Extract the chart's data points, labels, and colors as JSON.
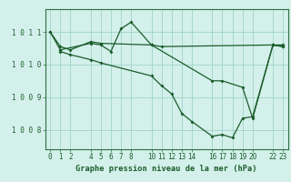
{
  "title": "Graphe pression niveau de la mer (hPa)",
  "background_color": "#d4f0eb",
  "grid_color": "#a0d4c8",
  "line_color": "#1a5c2a",
  "border_color": "#2d6e40",
  "xlim": [
    -0.5,
    23.5
  ],
  "ylim": [
    1007.4,
    1011.7
  ],
  "yticks": [
    1008,
    1009,
    1010,
    1011
  ],
  "ytick_labels": [
    "1 0 0 8",
    "1 0 0 9",
    "1 0 1 0",
    "1 0 1 1"
  ],
  "xtick_positions": [
    0,
    1,
    2,
    4,
    5,
    6,
    7,
    8,
    10,
    11,
    12,
    13,
    14,
    16,
    17,
    18,
    19,
    20,
    22,
    23
  ],
  "xtick_labels": [
    "0",
    "1",
    "2",
    "4",
    "5",
    "6",
    "7",
    "8",
    "10",
    "11",
    "12",
    "13",
    "14",
    "16",
    "17",
    "18",
    "19",
    "20",
    "22",
    "23"
  ],
  "series": [
    {
      "x": [
        0,
        1,
        2,
        4,
        5,
        10,
        11,
        22,
        23
      ],
      "y": [
        1011.0,
        1010.55,
        1010.45,
        1010.7,
        1010.65,
        1010.6,
        1010.55,
        1010.6,
        1010.6
      ]
    },
    {
      "x": [
        0,
        1,
        4,
        5,
        6,
        7,
        8,
        10,
        16,
        17,
        19,
        20,
        22,
        23
      ],
      "y": [
        1011.0,
        1010.45,
        1010.65,
        1010.6,
        1010.4,
        1011.1,
        1011.3,
        1010.6,
        1009.5,
        1009.5,
        1009.3,
        1008.35,
        1010.6,
        1010.55
      ]
    },
    {
      "x": [
        1,
        2,
        4,
        5,
        10,
        11,
        12,
        13,
        14,
        16,
        17,
        18,
        19,
        20,
        22,
        23
      ],
      "y": [
        1010.4,
        1010.3,
        1010.15,
        1010.05,
        1009.65,
        1009.35,
        1009.1,
        1008.5,
        1008.25,
        1007.8,
        1007.85,
        1007.75,
        1008.35,
        1008.4,
        1010.6,
        1010.55
      ]
    }
  ]
}
